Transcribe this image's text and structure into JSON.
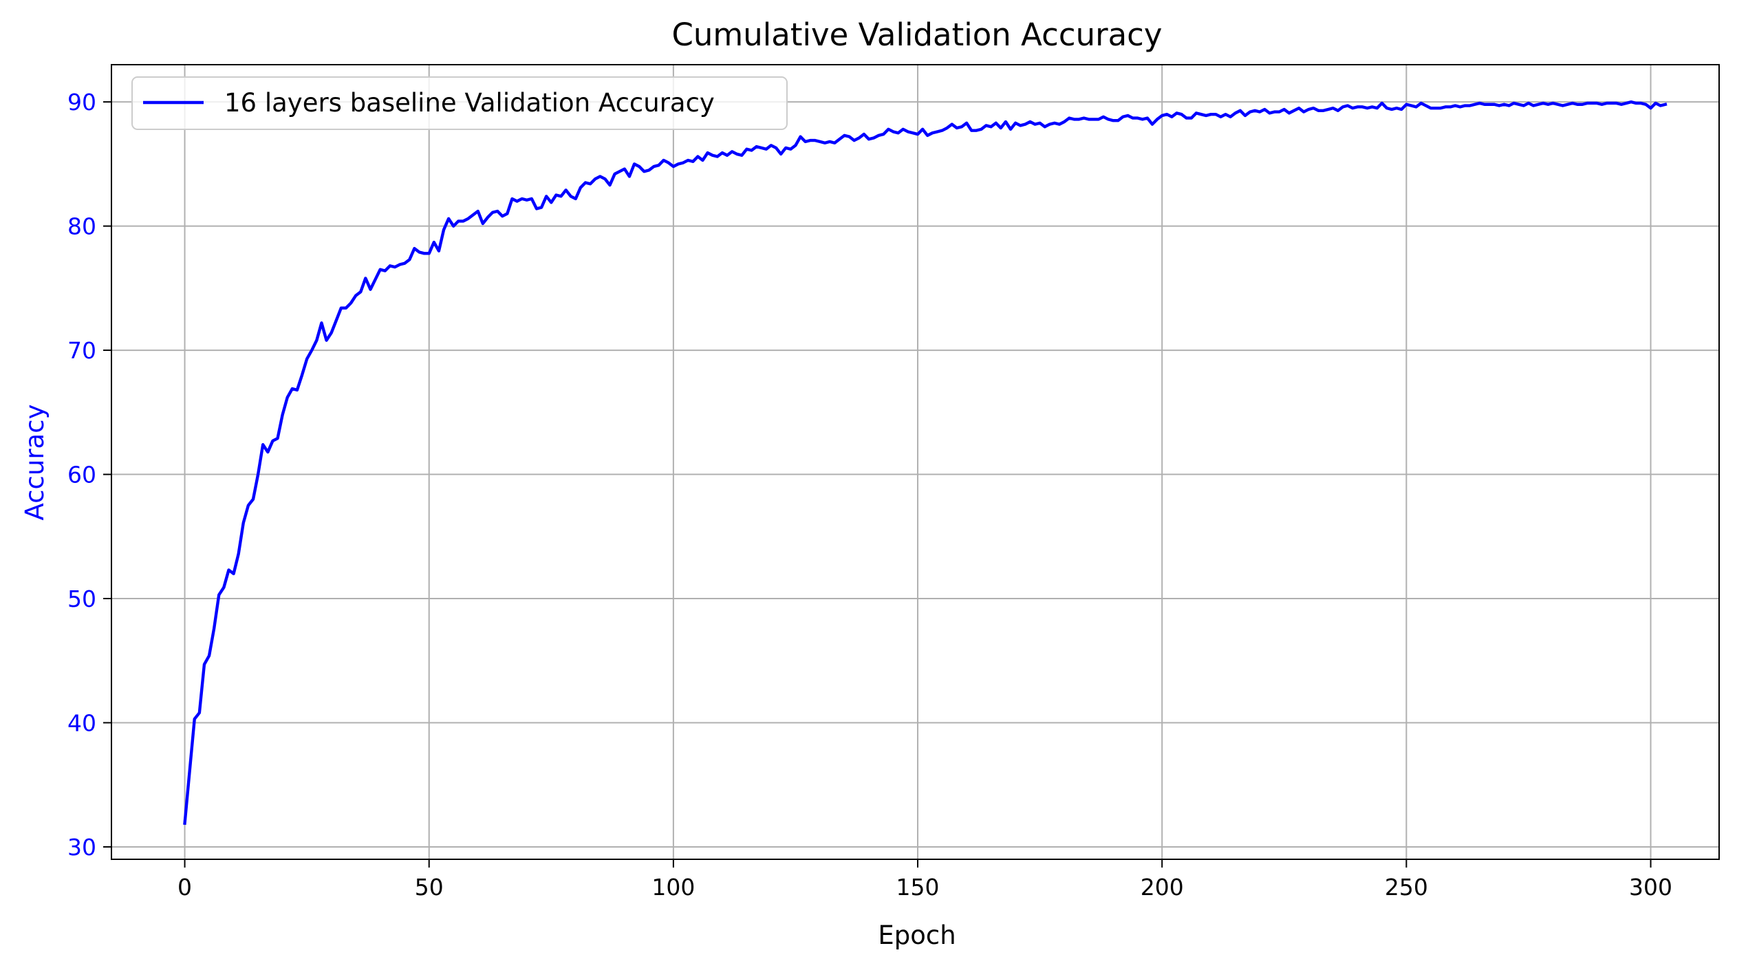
{
  "chart_data": {
    "type": "line",
    "title": "Cumulative Validation Accuracy",
    "xlabel": "Epoch",
    "ylabel": "Accuracy",
    "xlim": [
      -15,
      314
    ],
    "ylim": [
      29,
      93
    ],
    "xticks": [
      0,
      50,
      100,
      150,
      200,
      250,
      300
    ],
    "yticks": [
      30,
      40,
      50,
      60,
      70,
      80,
      90
    ],
    "grid": true,
    "legend_position": "top-left",
    "colors": {
      "line": "#0000ff",
      "ylabel": "#0000ff",
      "ytick_labels": "#0000ff",
      "grid": "#b0b0b0",
      "axes": "#000000"
    },
    "series": [
      {
        "name": "16 layers baseline Validation Accuracy",
        "x_start": 0,
        "x_step": 1,
        "values": [
          31.9,
          36.1,
          40.3,
          40.8,
          44.7,
          45.4,
          47.6,
          50.3,
          50.9,
          52.3,
          52.0,
          53.6,
          56.1,
          57.5,
          58.0,
          60.0,
          62.4,
          61.8,
          62.7,
          62.9,
          64.8,
          66.2,
          66.9,
          66.8,
          68.0,
          69.3,
          70.0,
          70.8,
          72.2,
          70.8,
          71.4,
          72.4,
          73.4,
          73.4,
          73.8,
          74.4,
          74.7,
          75.8,
          74.9,
          75.7,
          76.5,
          76.4,
          76.8,
          76.7,
          76.9,
          77.0,
          77.3,
          78.2,
          77.9,
          77.8,
          77.8,
          78.7,
          78.0,
          79.7,
          80.6,
          80.0,
          80.4,
          80.4,
          80.6,
          80.9,
          81.2,
          80.2,
          80.7,
          81.1,
          81.2,
          80.8,
          81.0,
          82.2,
          82.0,
          82.2,
          82.1,
          82.2,
          81.4,
          81.5,
          82.4,
          81.9,
          82.5,
          82.4,
          82.9,
          82.4,
          82.2,
          83.1,
          83.5,
          83.4,
          83.8,
          84.0,
          83.8,
          83.3,
          84.2,
          84.4,
          84.6,
          84.0,
          85.0,
          84.8,
          84.4,
          84.5,
          84.8,
          84.9,
          85.3,
          85.1,
          84.8,
          85.0,
          85.1,
          85.3,
          85.2,
          85.6,
          85.3,
          85.9,
          85.7,
          85.6,
          85.9,
          85.7,
          86.0,
          85.8,
          85.7,
          86.2,
          86.1,
          86.4,
          86.3,
          86.2,
          86.5,
          86.3,
          85.8,
          86.3,
          86.2,
          86.5,
          87.2,
          86.8,
          86.9,
          86.9,
          86.8,
          86.7,
          86.8,
          86.7,
          87.0,
          87.3,
          87.2,
          86.9,
          87.1,
          87.4,
          87.0,
          87.1,
          87.3,
          87.4,
          87.8,
          87.6,
          87.5,
          87.8,
          87.6,
          87.5,
          87.4,
          87.8,
          87.3,
          87.5,
          87.6,
          87.7,
          87.9,
          88.2,
          87.9,
          88.0,
          88.3,
          87.7,
          87.7,
          87.8,
          88.1,
          88.0,
          88.3,
          87.9,
          88.4,
          87.8,
          88.3,
          88.1,
          88.2,
          88.4,
          88.2,
          88.3,
          88.0,
          88.2,
          88.3,
          88.2,
          88.4,
          88.7,
          88.6,
          88.6,
          88.7,
          88.6,
          88.6,
          88.6,
          88.8,
          88.6,
          88.5,
          88.5,
          88.8,
          88.9,
          88.7,
          88.7,
          88.6,
          88.7,
          88.2,
          88.6,
          88.9,
          89.0,
          88.8,
          89.1,
          89.0,
          88.7,
          88.7,
          89.1,
          89.0,
          88.9,
          89.0,
          89.0,
          88.8,
          89.0,
          88.8,
          89.1,
          89.3,
          88.9,
          89.2,
          89.3,
          89.2,
          89.4,
          89.1,
          89.2,
          89.2,
          89.4,
          89.1,
          89.3,
          89.5,
          89.2,
          89.4,
          89.5,
          89.3,
          89.3,
          89.4,
          89.5,
          89.3,
          89.6,
          89.7,
          89.5,
          89.6,
          89.6,
          89.5,
          89.6,
          89.5,
          89.9,
          89.5,
          89.4,
          89.5,
          89.4,
          89.8,
          89.7,
          89.6,
          89.9,
          89.7,
          89.5,
          89.5,
          89.5,
          89.6,
          89.6,
          89.7,
          89.6,
          89.7,
          89.7,
          89.8,
          89.9,
          89.8,
          89.8,
          89.8,
          89.7,
          89.8,
          89.7,
          89.9,
          89.8,
          89.7,
          89.9,
          89.7,
          89.8,
          89.9,
          89.8,
          89.9,
          89.8,
          89.7,
          89.8,
          89.9,
          89.8,
          89.8,
          89.9,
          89.9,
          89.9,
          89.8,
          89.9,
          89.9,
          89.9,
          89.8,
          89.9,
          90.0,
          89.9,
          89.9,
          89.8,
          89.5,
          89.9,
          89.7,
          89.8
        ]
      }
    ]
  }
}
